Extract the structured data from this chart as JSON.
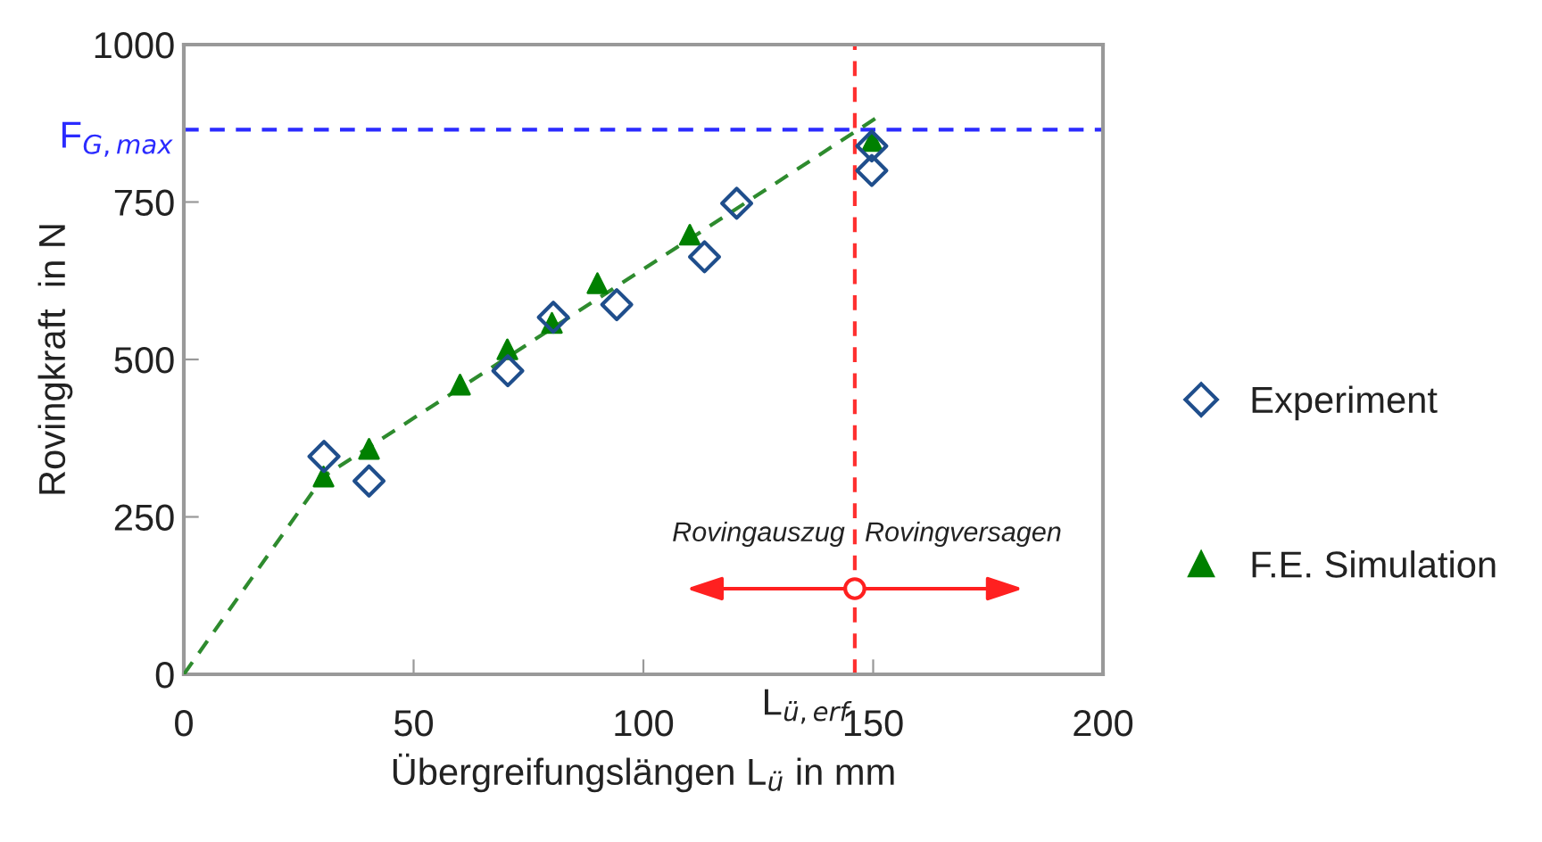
{
  "chart_data": {
    "type": "scatter",
    "xlabel": "Übergreifungslängen L$_{ü}$ in mm",
    "ylabel": "Rovingkraft  in N",
    "xlim": [
      0,
      200
    ],
    "ylim": [
      0,
      1000
    ],
    "xticks": [
      0,
      50,
      100,
      150,
      200
    ],
    "yticks": [
      0,
      250,
      500,
      750,
      1000
    ],
    "grid": false,
    "legend": "right",
    "series": [
      {
        "name": "Experiment",
        "color": "#1f4e8c",
        "marker": "diamond",
        "x": [
          30.5,
          40.3,
          70.5,
          80.4,
          94.2,
          113.3,
          120.3,
          149.7,
          149.7
        ],
        "values": [
          346,
          307,
          482,
          567,
          587,
          663,
          748,
          800,
          839
        ]
      },
      {
        "name": "F.E. Simulation",
        "color": "#008000",
        "marker": "triangle",
        "x": [
          30.4,
          40.3,
          60.1,
          70.4,
          80.1,
          90.0,
          110.1,
          149.8
        ],
        "values": [
          314,
          358,
          460,
          516,
          558,
          621,
          698,
          847
        ]
      },
      {
        "type": "line",
        "color": "#2e8b2e",
        "line_style": "dashed",
        "marker": "none",
        "x": [
          0,
          30.4,
          151
        ],
        "values": [
          0,
          314,
          885
        ]
      }
    ],
    "ref_lines": [
      {
        "axis": "y",
        "value": 865,
        "label": "F$_{G,max}$",
        "color": "#2b2bff",
        "line_style": "dashed"
      },
      {
        "axis": "x",
        "value": 146,
        "label": "L$_{ü,erf}$",
        "color": "#ff3030",
        "line_style": "dashed"
      }
    ],
    "annotations": [
      {
        "text": "Rovingauszug",
        "x": 146,
        "y": 136
      },
      {
        "text": "Rovingversagen",
        "x": 146,
        "y": 136
      }
    ]
  }
}
